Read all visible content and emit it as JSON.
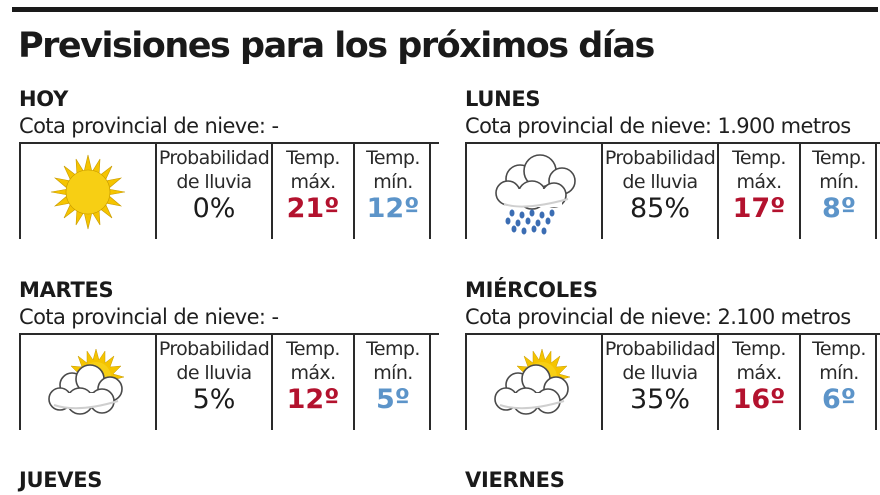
{
  "title": "Previsiones para los próximos días",
  "labels": {
    "prob_line1": "Probabilidad",
    "prob_line2": "de lluvia",
    "max_line1": "Temp.",
    "max_line2": "máx.",
    "min_line1": "Temp.",
    "min_line2": "mín."
  },
  "colors": {
    "max_temp": "#b3122e",
    "min_temp": "#5c94c9",
    "sun": "#f5c400",
    "cloud_outline": "#4a4a4a",
    "rain": "#3b6db3"
  },
  "days": [
    {
      "name": "HOY",
      "snow": "Cota provincial de nieve: -",
      "icon": "sun-icon",
      "prob": "0%",
      "max": "21º",
      "min": "12º"
    },
    {
      "name": "LUNES",
      "snow": "Cota provincial de nieve: 1.900 metros",
      "icon": "rain-cloud-icon",
      "prob": "85%",
      "max": "17º",
      "min": "8º"
    },
    {
      "name": "MARTES",
      "snow": "Cota provincial de nieve: -",
      "icon": "sun-behind-cloud-icon",
      "prob": "5%",
      "max": "12º",
      "min": "5º"
    },
    {
      "name": "MIÉRCOLES",
      "snow": "Cota provincial de nieve: 2.100 metros",
      "icon": "sun-behind-cloud-icon",
      "prob": "35%",
      "max": "16º",
      "min": "6º"
    },
    {
      "name": "JUEVES"
    },
    {
      "name": "VIERNES"
    }
  ]
}
